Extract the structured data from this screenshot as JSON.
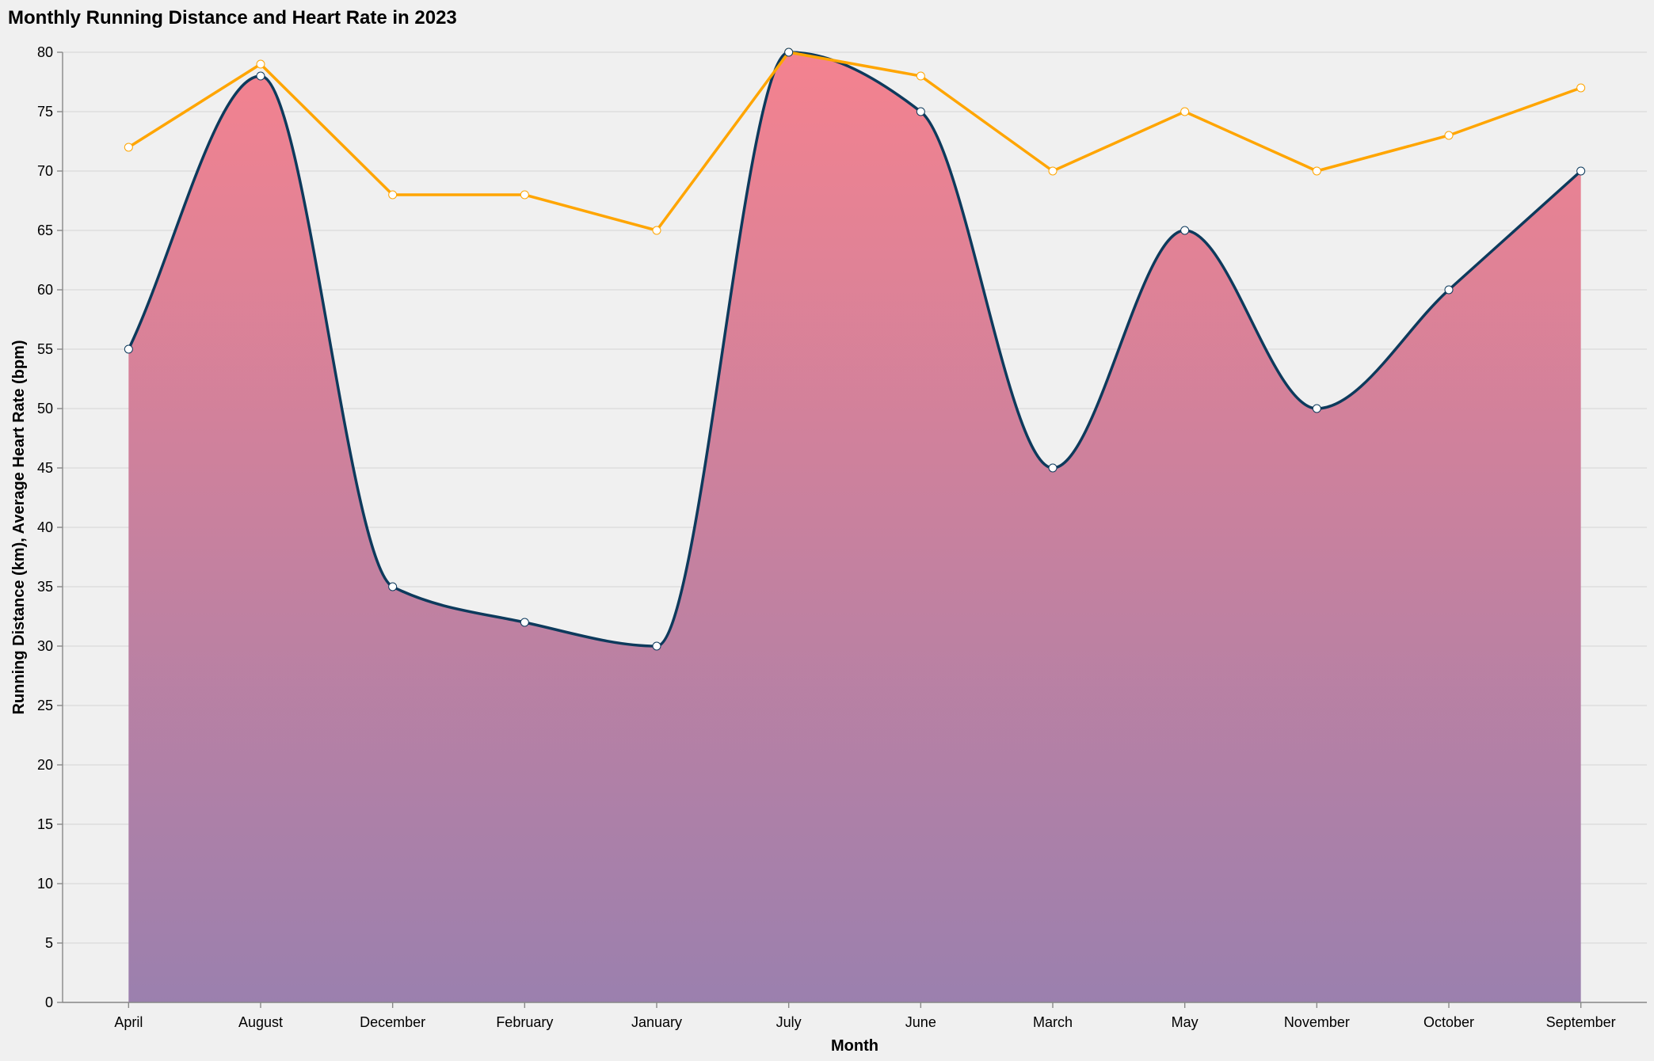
{
  "chart_data": {
    "type": "area",
    "title": "Monthly Running Distance and Heart Rate in 2023",
    "xlabel": "Month",
    "ylabel": "Running Distance (km), Average Heart Rate (bpm)",
    "categories": [
      "April",
      "August",
      "December",
      "February",
      "January",
      "July",
      "June",
      "March",
      "May",
      "November",
      "October",
      "September"
    ],
    "ylim": [
      0,
      80
    ],
    "yticks": [
      0,
      5,
      10,
      15,
      20,
      25,
      30,
      35,
      40,
      45,
      50,
      55,
      60,
      65,
      70,
      75,
      80
    ],
    "grid": true,
    "series": [
      {
        "mark": "area",
        "interpolation": "monotone",
        "values": [
          55,
          78,
          35,
          32,
          30,
          80,
          75,
          45,
          65,
          50,
          60,
          70
        ],
        "color": "#0d3a5c",
        "gradient": [
          "#f4828f",
          "#9b80ae"
        ]
      },
      {
        "mark": "line",
        "interpolation": "linear",
        "values": [
          72,
          79,
          68,
          68,
          65,
          80,
          78,
          70,
          75,
          70,
          73,
          77
        ],
        "color": "#ffa500"
      }
    ]
  }
}
